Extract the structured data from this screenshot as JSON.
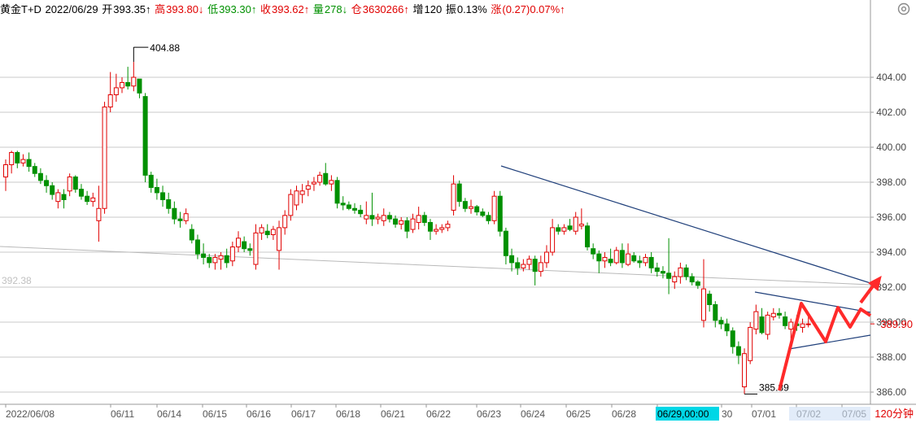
{
  "info": {
    "name": "黄金T+D",
    "date": "2022/06/29",
    "open_label": "开",
    "open": "393.35↑",
    "high_label": "高",
    "high": "393.80↓",
    "low_label": "低",
    "low": "393.30↑",
    "close_label": "收",
    "close": "393.62↑",
    "vol_label": "量",
    "vol": "278↓",
    "oi_label": "仓",
    "oi": "3630266↑",
    "inc_label": "增",
    "inc": "120",
    "amp_label": "振",
    "amp": "0.13%",
    "chg_label": "涨",
    "chg": "(0.27)0.07%↑"
  },
  "period_label": "120分钟",
  "colors": {
    "up": "#e00000",
    "down": "#009000",
    "grid": "#c8c8c8",
    "trend": "#1f3f7a",
    "arrow": "#ff2a2a",
    "highlight": "#00d7e6"
  },
  "icons": {
    "settings": "gear-icon"
  },
  "chart_data": {
    "type": "candlestick",
    "title": "",
    "xlabel": "",
    "ylabel": "",
    "ylim": [
      385.3,
      405.6
    ],
    "y_ticks": [
      "404.00",
      "402.00",
      "400.00",
      "398.00",
      "396.00",
      "394.00",
      "392.00",
      "390.00",
      "388.00",
      "386.00"
    ],
    "x_ticks": [
      "2022/06/08",
      "06/11",
      "06/14",
      "06/15",
      "06/16",
      "06/17",
      "06/18",
      "06/21",
      "06/22",
      "06/23",
      "06/24",
      "06/25",
      "06/28",
      "06/29,00:00",
      "30",
      "07/01",
      "07/02",
      "07/05"
    ],
    "highlighted_x_tick": "06/29,00:00",
    "grid": true,
    "current_price": "389.90",
    "left_price_label": "392.38",
    "high_marker": "404.88",
    "low_marker": "385.89",
    "candles": [
      {
        "o": 398.3,
        "h": 399.3,
        "l": 397.5,
        "c": 399.0
      },
      {
        "o": 399.0,
        "h": 399.8,
        "l": 398.5,
        "c": 399.7
      },
      {
        "o": 399.7,
        "h": 399.8,
        "l": 398.8,
        "c": 399.1
      },
      {
        "o": 399.1,
        "h": 399.6,
        "l": 398.9,
        "c": 399.3
      },
      {
        "o": 399.3,
        "h": 399.7,
        "l": 398.6,
        "c": 398.9
      },
      {
        "o": 398.9,
        "h": 399.1,
        "l": 398.3,
        "c": 398.5
      },
      {
        "o": 398.5,
        "h": 398.8,
        "l": 397.9,
        "c": 398.1
      },
      {
        "o": 398.1,
        "h": 398.4,
        "l": 397.4,
        "c": 397.8
      },
      {
        "o": 397.8,
        "h": 398.0,
        "l": 397.0,
        "c": 397.3
      },
      {
        "o": 396.9,
        "h": 397.6,
        "l": 396.5,
        "c": 397.4
      },
      {
        "o": 397.3,
        "h": 397.6,
        "l": 396.5,
        "c": 397.0
      },
      {
        "o": 397.5,
        "h": 398.5,
        "l": 397.2,
        "c": 398.3
      },
      {
        "o": 398.3,
        "h": 398.4,
        "l": 397.4,
        "c": 397.6
      },
      {
        "o": 397.6,
        "h": 397.9,
        "l": 397.0,
        "c": 397.2
      },
      {
        "o": 397.2,
        "h": 397.5,
        "l": 396.7,
        "c": 396.9
      },
      {
        "o": 396.9,
        "h": 397.4,
        "l": 396.6,
        "c": 397.1
      },
      {
        "o": 395.8,
        "h": 397.8,
        "l": 394.6,
        "c": 396.5
      },
      {
        "o": 396.5,
        "h": 402.6,
        "l": 396.2,
        "c": 402.3
      },
      {
        "o": 402.3,
        "h": 404.3,
        "l": 402.0,
        "c": 403.0
      },
      {
        "o": 403.0,
        "h": 404.2,
        "l": 402.6,
        "c": 403.4
      },
      {
        "o": 403.4,
        "h": 404.0,
        "l": 403.1,
        "c": 403.7
      },
      {
        "o": 403.7,
        "h": 404.6,
        "l": 403.3,
        "c": 403.5
      },
      {
        "o": 403.5,
        "h": 404.88,
        "l": 403.2,
        "c": 404.0
      },
      {
        "o": 403.9,
        "h": 403.9,
        "l": 402.8,
        "c": 403.1
      },
      {
        "o": 402.9,
        "h": 403.1,
        "l": 398.0,
        "c": 398.4
      },
      {
        "o": 398.4,
        "h": 398.6,
        "l": 397.4,
        "c": 397.7
      },
      {
        "o": 397.7,
        "h": 398.2,
        "l": 397.0,
        "c": 397.4
      },
      {
        "o": 397.4,
        "h": 397.8,
        "l": 396.6,
        "c": 397.0
      },
      {
        "o": 397.0,
        "h": 397.4,
        "l": 396.2,
        "c": 396.5
      },
      {
        "o": 396.5,
        "h": 396.9,
        "l": 395.6,
        "c": 395.9
      },
      {
        "o": 395.9,
        "h": 396.3,
        "l": 395.4,
        "c": 395.8
      },
      {
        "o": 395.8,
        "h": 396.5,
        "l": 395.6,
        "c": 396.2
      },
      {
        "o": 395.3,
        "h": 395.6,
        "l": 394.5,
        "c": 394.7
      },
      {
        "o": 394.7,
        "h": 395.0,
        "l": 393.6,
        "c": 393.9
      },
      {
        "o": 393.9,
        "h": 394.5,
        "l": 393.3,
        "c": 393.7
      },
      {
        "o": 393.7,
        "h": 393.9,
        "l": 393.1,
        "c": 393.4
      },
      {
        "o": 393.4,
        "h": 393.9,
        "l": 393.0,
        "c": 393.7
      },
      {
        "o": 393.6,
        "h": 394.0,
        "l": 393.0,
        "c": 393.8
      },
      {
        "o": 393.8,
        "h": 394.2,
        "l": 393.1,
        "c": 393.4
      },
      {
        "o": 393.5,
        "h": 394.6,
        "l": 393.2,
        "c": 394.3
      },
      {
        "o": 394.3,
        "h": 395.2,
        "l": 394.0,
        "c": 394.8
      },
      {
        "o": 394.6,
        "h": 394.9,
        "l": 394.0,
        "c": 394.2
      },
      {
        "o": 394.2,
        "h": 394.5,
        "l": 393.8,
        "c": 394.1
      },
      {
        "o": 393.3,
        "h": 395.6,
        "l": 393.0,
        "c": 395.1
      },
      {
        "o": 395.1,
        "h": 395.6,
        "l": 394.7,
        "c": 395.4
      },
      {
        "o": 395.2,
        "h": 395.6,
        "l": 394.8,
        "c": 395.0
      },
      {
        "o": 395.0,
        "h": 395.5,
        "l": 394.7,
        "c": 395.3
      },
      {
        "o": 394.1,
        "h": 395.8,
        "l": 393.0,
        "c": 395.4
      },
      {
        "o": 395.4,
        "h": 396.4,
        "l": 395.0,
        "c": 396.1
      },
      {
        "o": 396.1,
        "h": 397.6,
        "l": 395.8,
        "c": 397.3
      },
      {
        "o": 396.7,
        "h": 397.8,
        "l": 396.4,
        "c": 397.5
      },
      {
        "o": 397.3,
        "h": 397.9,
        "l": 396.8,
        "c": 397.5
      },
      {
        "o": 397.6,
        "h": 398.1,
        "l": 397.2,
        "c": 397.8
      },
      {
        "o": 397.9,
        "h": 398.3,
        "l": 397.5,
        "c": 398.0
      },
      {
        "o": 398.0,
        "h": 398.6,
        "l": 397.8,
        "c": 398.4
      },
      {
        "o": 398.5,
        "h": 399.1,
        "l": 397.8,
        "c": 397.9
      },
      {
        "o": 397.9,
        "h": 398.4,
        "l": 397.5,
        "c": 398.1
      },
      {
        "o": 398.1,
        "h": 398.3,
        "l": 396.5,
        "c": 396.8
      },
      {
        "o": 396.8,
        "h": 397.2,
        "l": 396.4,
        "c": 396.7
      },
      {
        "o": 396.7,
        "h": 396.9,
        "l": 396.4,
        "c": 396.5
      },
      {
        "o": 396.5,
        "h": 396.8,
        "l": 396.2,
        "c": 396.4
      },
      {
        "o": 396.4,
        "h": 396.7,
        "l": 396.0,
        "c": 396.2
      },
      {
        "o": 395.9,
        "h": 396.9,
        "l": 395.6,
        "c": 396.1
      },
      {
        "o": 396.1,
        "h": 397.4,
        "l": 395.5,
        "c": 395.9
      },
      {
        "o": 395.9,
        "h": 396.2,
        "l": 395.6,
        "c": 396.0
      },
      {
        "o": 395.8,
        "h": 396.5,
        "l": 395.5,
        "c": 396.1
      },
      {
        "o": 396.1,
        "h": 396.3,
        "l": 395.7,
        "c": 395.9
      },
      {
        "o": 395.9,
        "h": 396.1,
        "l": 395.4,
        "c": 395.6
      },
      {
        "o": 395.6,
        "h": 396.0,
        "l": 395.3,
        "c": 395.8
      },
      {
        "o": 395.8,
        "h": 396.0,
        "l": 394.8,
        "c": 395.2
      },
      {
        "o": 395.3,
        "h": 396.2,
        "l": 395.1,
        "c": 395.9
      },
      {
        "o": 395.7,
        "h": 396.6,
        "l": 395.3,
        "c": 396.1
      },
      {
        "o": 396.1,
        "h": 396.3,
        "l": 395.5,
        "c": 395.7
      },
      {
        "o": 395.7,
        "h": 395.9,
        "l": 394.7,
        "c": 395.2
      },
      {
        "o": 395.2,
        "h": 395.6,
        "l": 395.0,
        "c": 395.3
      },
      {
        "o": 395.3,
        "h": 395.6,
        "l": 395.1,
        "c": 395.4
      },
      {
        "o": 395.4,
        "h": 395.8,
        "l": 395.2,
        "c": 395.6
      },
      {
        "o": 396.4,
        "h": 398.4,
        "l": 396.1,
        "c": 397.9
      },
      {
        "o": 397.9,
        "h": 398.1,
        "l": 396.6,
        "c": 396.9
      },
      {
        "o": 396.9,
        "h": 397.1,
        "l": 396.3,
        "c": 396.5
      },
      {
        "o": 396.5,
        "h": 397.0,
        "l": 396.2,
        "c": 396.6
      },
      {
        "o": 396.6,
        "h": 396.7,
        "l": 396.1,
        "c": 396.3
      },
      {
        "o": 396.3,
        "h": 396.5,
        "l": 396.0,
        "c": 396.1
      },
      {
        "o": 396.1,
        "h": 396.3,
        "l": 395.6,
        "c": 395.8
      },
      {
        "o": 395.8,
        "h": 397.5,
        "l": 395.6,
        "c": 397.2
      },
      {
        "o": 397.2,
        "h": 397.5,
        "l": 394.9,
        "c": 395.2
      },
      {
        "o": 395.2,
        "h": 395.4,
        "l": 393.3,
        "c": 393.8
      },
      {
        "o": 393.8,
        "h": 394.2,
        "l": 392.9,
        "c": 393.4
      },
      {
        "o": 393.4,
        "h": 393.7,
        "l": 392.7,
        "c": 393.1
      },
      {
        "o": 393.1,
        "h": 393.6,
        "l": 392.9,
        "c": 393.3
      },
      {
        "o": 393.3,
        "h": 393.8,
        "l": 393.0,
        "c": 393.6
      },
      {
        "o": 393.6,
        "h": 393.8,
        "l": 392.1,
        "c": 392.9
      },
      {
        "o": 392.9,
        "h": 393.8,
        "l": 392.6,
        "c": 393.4
      },
      {
        "o": 393.4,
        "h": 394.4,
        "l": 393.1,
        "c": 394.0
      },
      {
        "o": 394.0,
        "h": 395.9,
        "l": 393.8,
        "c": 395.4
      },
      {
        "o": 395.4,
        "h": 395.6,
        "l": 395.0,
        "c": 395.2
      },
      {
        "o": 395.2,
        "h": 395.6,
        "l": 395.0,
        "c": 395.4
      },
      {
        "o": 395.5,
        "h": 395.9,
        "l": 395.2,
        "c": 395.3
      },
      {
        "o": 395.2,
        "h": 396.3,
        "l": 395.0,
        "c": 396.0
      },
      {
        "o": 395.5,
        "h": 396.5,
        "l": 395.3,
        "c": 395.6
      },
      {
        "o": 395.5,
        "h": 395.7,
        "l": 394.1,
        "c": 394.3
      },
      {
        "o": 394.2,
        "h": 394.5,
        "l": 393.6,
        "c": 393.9
      },
      {
        "o": 393.9,
        "h": 394.1,
        "l": 392.8,
        "c": 393.5
      },
      {
        "o": 393.5,
        "h": 394.0,
        "l": 393.1,
        "c": 393.7
      },
      {
        "o": 393.6,
        "h": 394.2,
        "l": 393.2,
        "c": 393.4
      },
      {
        "o": 393.4,
        "h": 394.3,
        "l": 393.3,
        "c": 394.1
      },
      {
        "o": 394.1,
        "h": 394.5,
        "l": 393.1,
        "c": 393.4
      },
      {
        "o": 393.3,
        "h": 394.5,
        "l": 393.2,
        "c": 393.9
      },
      {
        "o": 393.8,
        "h": 394.0,
        "l": 393.4,
        "c": 393.5
      },
      {
        "o": 393.5,
        "h": 393.8,
        "l": 393.1,
        "c": 393.4
      },
      {
        "o": 393.4,
        "h": 393.9,
        "l": 393.2,
        "c": 393.7
      },
      {
        "o": 393.7,
        "h": 394.0,
        "l": 392.8,
        "c": 393.1
      },
      {
        "o": 393.1,
        "h": 393.4,
        "l": 392.6,
        "c": 392.9
      },
      {
        "o": 392.9,
        "h": 393.2,
        "l": 392.5,
        "c": 392.8
      },
      {
        "o": 392.8,
        "h": 394.8,
        "l": 391.6,
        "c": 392.5
      },
      {
        "o": 392.3,
        "h": 392.9,
        "l": 391.9,
        "c": 392.6
      },
      {
        "o": 392.6,
        "h": 393.4,
        "l": 392.2,
        "c": 393.1
      },
      {
        "o": 393.1,
        "h": 393.3,
        "l": 392.4,
        "c": 392.6
      },
      {
        "o": 392.6,
        "h": 392.8,
        "l": 392.1,
        "c": 392.3
      },
      {
        "o": 392.3,
        "h": 392.4,
        "l": 391.9,
        "c": 392.1
      },
      {
        "o": 390.1,
        "h": 393.6,
        "l": 389.7,
        "c": 391.9
      },
      {
        "o": 391.6,
        "h": 391.8,
        "l": 390.6,
        "c": 391.0
      },
      {
        "o": 391.0,
        "h": 391.2,
        "l": 389.7,
        "c": 390.1
      },
      {
        "o": 390.1,
        "h": 390.3,
        "l": 389.6,
        "c": 389.9
      },
      {
        "o": 389.9,
        "h": 390.2,
        "l": 389.2,
        "c": 389.5
      },
      {
        "o": 389.5,
        "h": 389.7,
        "l": 388.2,
        "c": 388.6
      },
      {
        "o": 388.6,
        "h": 388.9,
        "l": 387.6,
        "c": 388.1
      },
      {
        "o": 386.3,
        "h": 388.5,
        "l": 385.89,
        "c": 388.2
      },
      {
        "o": 387.8,
        "h": 390.0,
        "l": 387.6,
        "c": 389.7
      },
      {
        "o": 389.6,
        "h": 391.0,
        "l": 389.3,
        "c": 390.6
      },
      {
        "o": 390.3,
        "h": 390.8,
        "l": 389.3,
        "c": 389.4
      },
      {
        "o": 389.3,
        "h": 390.6,
        "l": 389.0,
        "c": 390.4
      },
      {
        "o": 390.3,
        "h": 390.8,
        "l": 390.1,
        "c": 390.5
      },
      {
        "o": 390.5,
        "h": 390.8,
        "l": 390.2,
        "c": 390.4
      },
      {
        "o": 390.3,
        "h": 390.6,
        "l": 389.6,
        "c": 389.8
      },
      {
        "o": 389.6,
        "h": 390.2,
        "l": 388.9,
        "c": 390.0
      },
      {
        "o": 389.9,
        "h": 390.4,
        "l": 389.5,
        "c": 389.8
      },
      {
        "o": 389.7,
        "h": 390.2,
        "l": 389.4,
        "c": 389.9
      },
      {
        "o": 389.9,
        "h": 390.3,
        "l": 389.7,
        "c": 389.9
      }
    ]
  }
}
